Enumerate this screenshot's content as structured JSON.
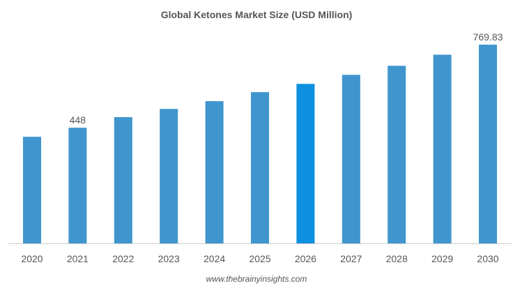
{
  "chart_data": {
    "type": "bar",
    "title": "Global Ketones Market Size (USD Million)",
    "xlabel": "",
    "ylabel": "",
    "ylim": [
      0,
      770
    ],
    "grid": false,
    "categories": [
      "2020",
      "2021",
      "2022",
      "2023",
      "2024",
      "2025",
      "2026",
      "2027",
      "2028",
      "2029",
      "2030"
    ],
    "values": [
      413,
      448,
      489,
      521,
      551,
      586,
      618,
      653,
      688,
      731,
      769.83
    ],
    "data_labels": {
      "1": "448",
      "10": "769.83"
    },
    "highlight_index": 6,
    "colors": {
      "bar": "#4095ce",
      "highlight": "#0e90e0",
      "axis": "#cccccc",
      "text": "#555555",
      "title": "#555555"
    }
  },
  "footer": {
    "source": "www.thebrainyinsights.com"
  }
}
